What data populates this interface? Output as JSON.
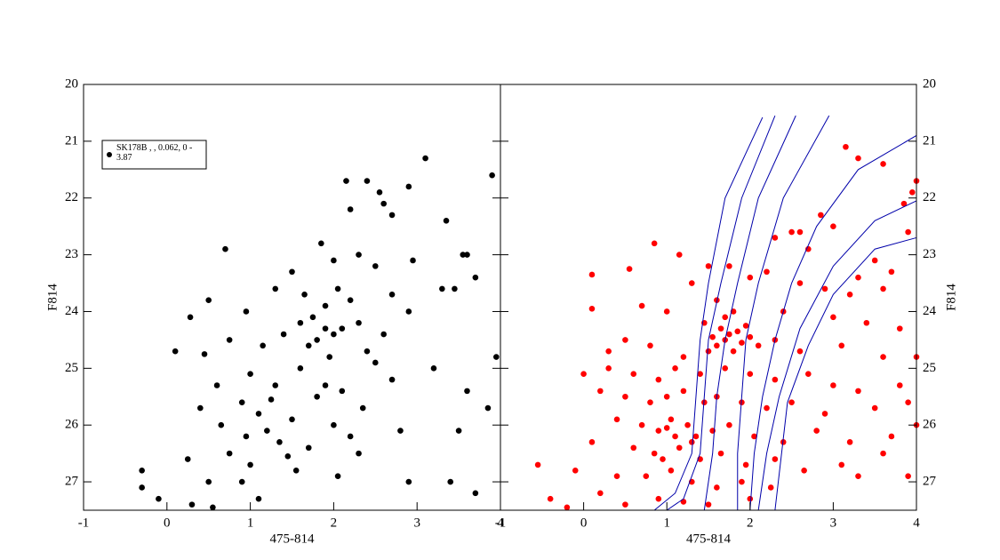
{
  "chart_data": [
    {
      "type": "scatter",
      "xlabel": "475-814",
      "ylabel": "F814",
      "xlim": [
        -1,
        4
      ],
      "ylim": [
        27.5,
        20
      ],
      "xticks": [
        -1,
        0,
        1,
        2,
        3,
        4
      ],
      "yticks": [
        20,
        21,
        22,
        23,
        24,
        25,
        26,
        27
      ],
      "ytick_side": "left",
      "legend": "upper left",
      "series": [
        {
          "name": "SK178B , , 0.062, 0 - 3.87",
          "color": "#000000",
          "style": "points",
          "x": [
            3.1,
            3.9,
            2.15,
            2.4,
            2.9,
            2.55,
            2.6,
            2.2,
            3.35,
            2.7,
            1.85,
            0.7,
            2.3,
            2.0,
            3.55,
            3.6,
            2.95,
            1.5,
            2.5,
            3.7,
            1.3,
            0.5,
            3.3,
            3.45,
            1.65,
            2.05,
            2.7,
            1.9,
            0.95,
            2.2,
            0.28,
            1.6,
            1.75,
            1.9,
            2.0,
            1.8,
            1.7,
            2.1,
            2.3,
            1.4,
            0.75,
            2.6,
            2.9,
            1.15,
            2.4,
            1.95,
            0.1,
            0.45,
            3.95,
            2.5,
            1.6,
            3.2,
            1.0,
            2.7,
            1.3,
            0.6,
            2.1,
            3.6,
            1.8,
            0.9,
            1.1,
            0.4,
            2.35,
            3.85,
            1.5,
            2.0,
            1.2,
            0.95,
            1.35,
            2.8,
            0.75,
            1.7,
            2.3,
            1.0,
            3.5,
            0.25,
            1.55,
            2.05,
            0.5,
            2.9,
            3.4,
            3.7,
            -0.3,
            -0.3,
            -0.1,
            0.3,
            0.55,
            1.1,
            0.9,
            1.45,
            1.25,
            1.9,
            2.2,
            0.65
          ],
          "y": [
            21.3,
            21.6,
            21.7,
            21.7,
            21.8,
            21.9,
            22.1,
            22.2,
            22.4,
            22.3,
            22.8,
            22.9,
            23.0,
            23.1,
            23.0,
            23.0,
            23.1,
            23.3,
            23.2,
            23.4,
            23.6,
            23.8,
            23.6,
            23.6,
            23.7,
            23.6,
            23.7,
            23.9,
            24.0,
            23.8,
            24.1,
            24.2,
            24.1,
            24.3,
            24.4,
            24.5,
            24.6,
            24.3,
            24.2,
            24.4,
            24.5,
            24.4,
            24.0,
            24.6,
            24.7,
            24.8,
            24.7,
            24.75,
            24.8,
            24.9,
            25.0,
            25.0,
            25.1,
            25.2,
            25.3,
            25.3,
            25.4,
            25.4,
            25.5,
            25.6,
            25.8,
            25.7,
            25.7,
            25.7,
            25.9,
            26.0,
            26.1,
            26.2,
            26.3,
            26.1,
            26.5,
            26.4,
            26.5,
            26.7,
            26.1,
            26.6,
            26.8,
            26.9,
            27.0,
            27.0,
            27.0,
            27.2,
            26.8,
            27.1,
            27.3,
            27.4,
            27.45,
            27.3,
            27.0,
            26.55,
            25.55,
            25.3,
            26.2,
            26.0
          ]
        }
      ]
    },
    {
      "type": "scatter",
      "xlabel": "475-814",
      "ylabel": "F814",
      "xlim": [
        -1,
        4
      ],
      "ylim": [
        27.5,
        20
      ],
      "xticks": [
        -1,
        0,
        1,
        2,
        3,
        4
      ],
      "yticks": [
        20,
        21,
        22,
        23,
        24,
        25,
        26,
        27
      ],
      "ytick_side": "right",
      "series": [
        {
          "color": "#ff0000",
          "style": "points",
          "x": [
            3.15,
            3.3,
            3.6,
            4.0,
            3.95,
            3.85,
            2.85,
            3.0,
            2.5,
            2.6,
            2.3,
            2.7,
            3.9,
            3.5,
            3.7,
            3.3,
            0.1,
            0.55,
            0.85,
            1.15,
            1.5,
            1.75,
            2.0,
            2.2,
            2.6,
            2.9,
            3.2,
            3.6,
            1.3,
            0.7,
            0.1,
            1.0,
            1.6,
            1.8,
            2.4,
            3.0,
            3.4,
            3.8,
            1.45,
            1.65,
            1.75,
            1.85,
            1.7,
            1.9,
            2.0,
            1.6,
            1.8,
            2.1,
            2.3,
            1.5,
            0.5,
            0.3,
            0.8,
            1.2,
            2.6,
            3.1,
            3.6,
            4.0,
            0.0,
            0.3,
            0.6,
            0.9,
            1.1,
            1.4,
            1.7,
            2.0,
            2.3,
            2.7,
            3.0,
            3.3,
            3.8,
            0.2,
            0.5,
            0.8,
            1.0,
            1.2,
            1.45,
            1.6,
            1.9,
            2.2,
            2.5,
            2.9,
            3.5,
            3.9,
            0.4,
            0.7,
            0.9,
            1.05,
            1.25,
            1.35,
            1.55,
            1.75,
            2.05,
            2.4,
            2.8,
            3.2,
            3.7,
            4.0,
            0.1,
            0.6,
            0.85,
            1.15,
            1.4,
            1.65,
            1.95,
            2.3,
            2.65,
            3.1,
            3.6,
            -0.55,
            -0.1,
            0.4,
            0.75,
            1.05,
            1.3,
            1.6,
            1.9,
            2.25,
            3.3,
            3.9,
            -0.4,
            -0.2,
            0.2,
            0.5,
            0.9,
            1.2,
            1.5,
            2.0,
            1.1,
            1.0,
            0.95,
            1.3,
            1.7,
            1.55,
            1.95
          ],
          "y": [
            21.1,
            21.3,
            21.4,
            21.7,
            21.9,
            22.1,
            22.3,
            22.5,
            22.6,
            22.6,
            22.7,
            22.9,
            22.6,
            23.1,
            23.3,
            23.4,
            23.35,
            23.25,
            22.8,
            23.0,
            23.2,
            23.2,
            23.4,
            23.3,
            23.5,
            23.6,
            23.7,
            23.6,
            23.5,
            23.9,
            23.95,
            24.0,
            23.8,
            24.0,
            24.0,
            24.1,
            24.2,
            24.3,
            24.2,
            24.3,
            24.4,
            24.35,
            24.5,
            24.55,
            24.45,
            24.6,
            24.7,
            24.6,
            24.5,
            24.7,
            24.5,
            24.7,
            24.6,
            24.8,
            24.7,
            24.6,
            24.8,
            24.8,
            25.1,
            25.0,
            25.1,
            25.2,
            25.0,
            25.1,
            25.0,
            25.1,
            25.2,
            25.1,
            25.3,
            25.4,
            25.3,
            25.4,
            25.5,
            25.6,
            25.5,
            25.4,
            25.6,
            25.5,
            25.6,
            25.7,
            25.6,
            25.8,
            25.7,
            25.6,
            25.9,
            26.0,
            26.1,
            25.9,
            26.0,
            26.2,
            26.1,
            26.0,
            26.2,
            26.3,
            26.1,
            26.3,
            26.2,
            26.0,
            26.3,
            26.4,
            26.5,
            26.4,
            26.6,
            26.5,
            26.7,
            26.6,
            26.8,
            26.7,
            26.5,
            26.7,
            26.8,
            26.9,
            26.9,
            26.8,
            27.0,
            27.1,
            27.0,
            27.1,
            26.9,
            26.9,
            27.3,
            27.45,
            27.2,
            27.4,
            27.3,
            27.35,
            27.4,
            27.3,
            26.2,
            26.05,
            26.6,
            26.3,
            24.1,
            24.45,
            24.25
          ]
        },
        {
          "color": "#0000aa",
          "style": "line",
          "x": [
            2.15,
            1.7,
            1.5,
            1.4,
            1.35,
            1.3,
            1.1,
            0.85
          ],
          "y": [
            20.58,
            22,
            23.5,
            24.5,
            25.5,
            26.5,
            27.2,
            27.5
          ]
        },
        {
          "color": "#0000aa",
          "style": "line",
          "x": [
            2.3,
            1.9,
            1.65,
            1.5,
            1.45,
            1.4,
            1.2,
            1.0
          ],
          "y": [
            20.55,
            22,
            23.5,
            24.5,
            25.5,
            26.5,
            27.3,
            27.5
          ]
        },
        {
          "color": "#0000aa",
          "style": "line",
          "x": [
            2.55,
            2.1,
            1.85,
            1.7,
            1.6,
            1.55,
            1.45
          ],
          "y": [
            20.55,
            22,
            23.5,
            24.5,
            25.5,
            26.5,
            27.5
          ]
        },
        {
          "color": "#0000aa",
          "style": "line",
          "x": [
            2.95,
            2.4,
            2.1,
            1.95,
            1.9,
            1.85,
            1.85
          ],
          "y": [
            20.55,
            22,
            23.5,
            24.5,
            25.5,
            26.5,
            27.5
          ]
        },
        {
          "color": "#0000aa",
          "style": "line",
          "x": [
            4.0,
            3.3,
            2.8,
            2.5,
            2.3,
            2.15,
            2.05,
            2.0
          ],
          "y": [
            20.9,
            21.5,
            22.5,
            23.5,
            24.5,
            25.5,
            26.5,
            27.5
          ]
        },
        {
          "color": "#0000aa",
          "style": "line",
          "x": [
            4.0,
            3.5,
            3.0,
            2.6,
            2.35,
            2.2,
            2.1
          ],
          "y": [
            22.05,
            22.4,
            23.2,
            24.3,
            25.5,
            26.5,
            27.5
          ]
        },
        {
          "color": "#0000aa",
          "style": "line",
          "x": [
            4.0,
            3.5,
            3.0,
            2.7,
            2.45,
            2.3
          ],
          "y": [
            22.7,
            22.9,
            23.7,
            24.6,
            25.6,
            27.5
          ]
        }
      ]
    }
  ]
}
